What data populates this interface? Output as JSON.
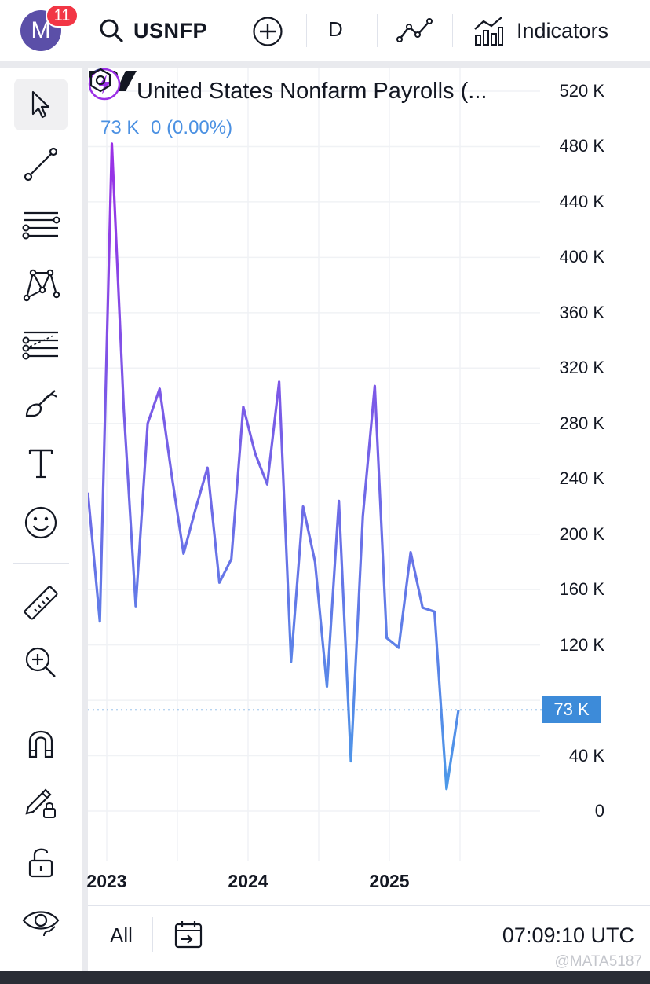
{
  "header": {
    "avatar_letter": "M",
    "notification_count": "11",
    "symbol": "USNFP",
    "interval": "D",
    "indicators_label": "Indicators"
  },
  "legend": {
    "title": "United States Nonfarm Payrolls (...",
    "last_value": "73 K",
    "change": "0 (0.00%)"
  },
  "price_label": "73 K",
  "bottom_bar": {
    "range_label": "All",
    "clock": "07:09:10 UTC"
  },
  "watermark": "@MATA5187",
  "colors": {
    "line_top": "#9b2fe6",
    "line_bottom": "#4a9ae8",
    "price_label_bg": "#3d8bd9"
  },
  "chart_data": {
    "type": "line",
    "series": [
      {
        "values": [
          230,
          137,
          482,
          290,
          148,
          280,
          305,
          243,
          186,
          218,
          248,
          165,
          182,
          292,
          258,
          236,
          310,
          108,
          220,
          180,
          90,
          224,
          36,
          213,
          307,
          125,
          118,
          187,
          147,
          144,
          16,
          73
        ]
      }
    ],
    "y_ticks": [
      "520 K",
      "480 K",
      "440 K",
      "400 K",
      "360 K",
      "320 K",
      "280 K",
      "240 K",
      "200 K",
      "160 K",
      "120 K",
      "40 K",
      "0"
    ],
    "y_tick_values": [
      520,
      480,
      440,
      400,
      360,
      320,
      280,
      240,
      200,
      160,
      120,
      40,
      0
    ],
    "x_ticks": [
      "2023",
      "2024",
      "2025"
    ],
    "ylim": [
      -20,
      540
    ],
    "last_value": 73,
    "grid": true
  }
}
